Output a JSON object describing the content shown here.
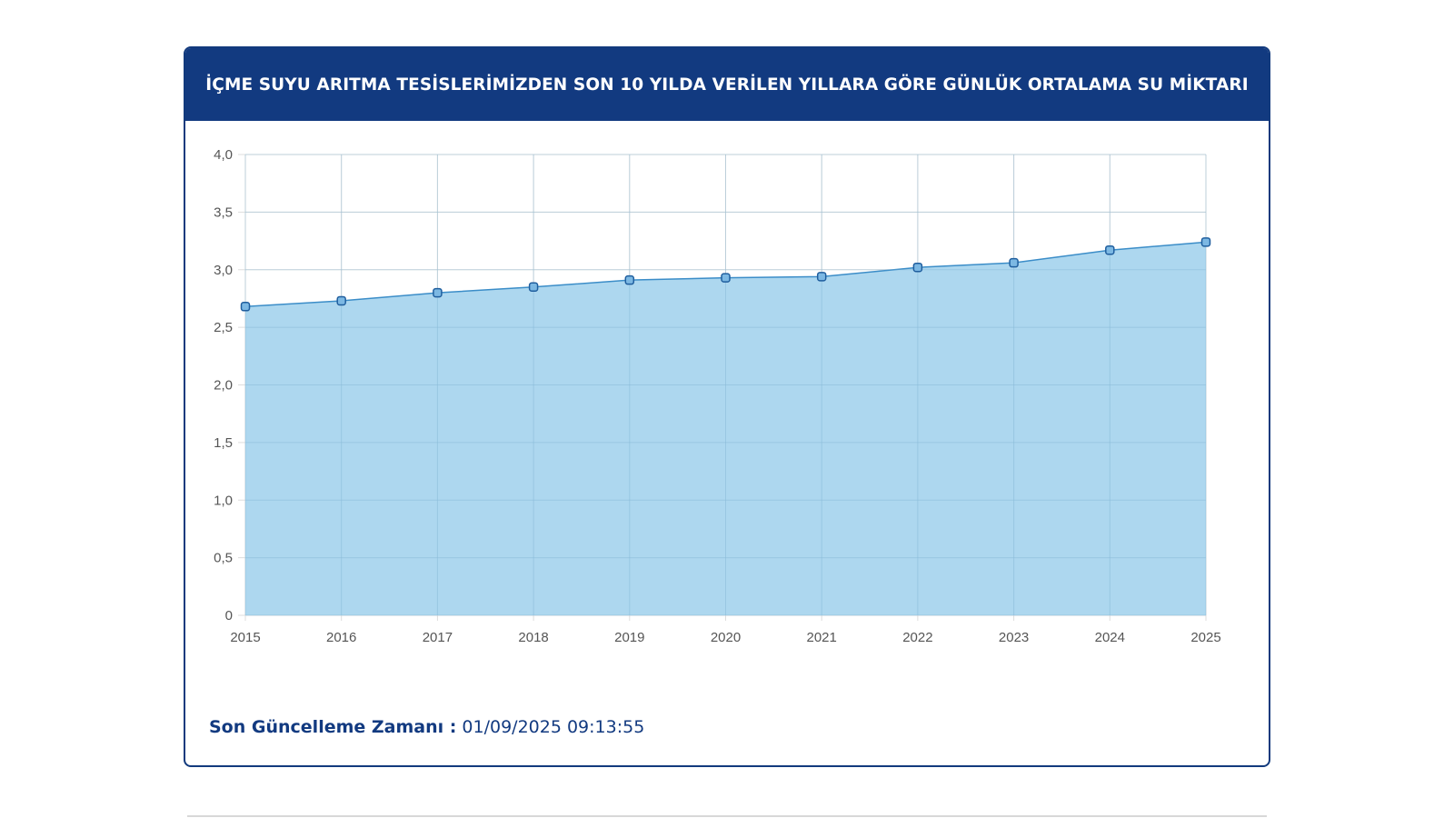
{
  "card": {
    "title": "İÇME SUYU ARITMA TESİSLERİMİZDEN SON 10 YILDA VERİLEN YILLARA GÖRE GÜNLÜK ORTALAMA SU MİKTARI"
  },
  "footer": {
    "label": "Son Güncelleme Zamanı :",
    "value": "01/09/2025 09:13:55"
  },
  "colors": {
    "header_bg": "#123a80",
    "area_fill": "#9fd0ec",
    "line": "#3b8dc8",
    "grid": "#dddddd"
  },
  "chart_data": {
    "type": "area",
    "x": [
      "2015",
      "2016",
      "2017",
      "2018",
      "2019",
      "2020",
      "2021",
      "2022",
      "2023",
      "2024",
      "2025"
    ],
    "series": [
      {
        "values": [
          2.68,
          2.73,
          2.8,
          2.85,
          2.91,
          2.93,
          2.94,
          3.02,
          3.06,
          3.17,
          3.24
        ]
      }
    ],
    "ylim": [
      0,
      4
    ],
    "yticks": [
      "0",
      "0,5",
      "1,0",
      "1,5",
      "2,0",
      "2,5",
      "3,0",
      "3,5",
      "4,0"
    ],
    "grid": true,
    "xlabel": "",
    "ylabel": ""
  }
}
